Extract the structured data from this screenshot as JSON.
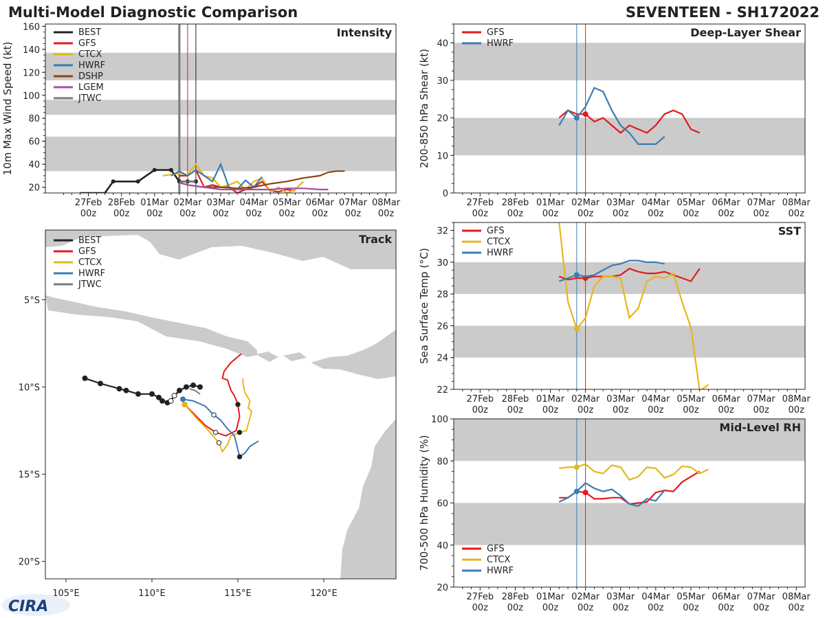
{
  "header": {
    "title_left": "Multi-Model Diagnostic Comparison",
    "title_right": "SEVENTEEN - SH172022"
  },
  "logo": {
    "text": "CIRA"
  },
  "colors": {
    "BEST": "#222222",
    "GFS": "#e31a1c",
    "CTCX": "#e6b619",
    "HWRF": "#3a7cb2",
    "DSHP": "#8b4513",
    "LGEM": "#a64ca6",
    "JTWC": "#7a7a7a",
    "band": "#cbcbcb"
  },
  "time_axis": {
    "labels": [
      "27Feb",
      "28Feb",
      "01Mar",
      "02Mar",
      "03Mar",
      "04Mar",
      "05Mar",
      "06Mar",
      "07Mar",
      "08Mar"
    ],
    "sublabel": "00z",
    "vline_blue": 2.75,
    "vline_red": 3.0,
    "vline_black": 3.25
  },
  "chart_data": [
    {
      "id": "intensity",
      "type": "line",
      "title": "Intensity",
      "ylabel": "10m Max Wind Speed (kt)",
      "xlim": [
        -1.3,
        9.3
      ],
      "ylim": [
        15,
        162
      ],
      "yticks": [
        20,
        40,
        60,
        80,
        100,
        120,
        140,
        160
      ],
      "bands": [
        [
          34,
          64
        ],
        [
          83,
          96
        ],
        [
          113,
          137
        ]
      ],
      "vlines": [
        {
          "x": 2.75,
          "color": "#7a7a7a",
          "width": 3
        },
        {
          "x": 3.0,
          "color": "#e31a1c",
          "width": 1
        },
        {
          "x": 3.25,
          "color": "#222222",
          "width": 1
        }
      ],
      "legend": [
        "BEST",
        "GFS",
        "CTCX",
        "HWRF",
        "DSHP",
        "LGEM",
        "JTWC"
      ],
      "series": [
        {
          "name": "BEST",
          "x": [
            -0.25,
            0.5,
            0.75,
            1.5,
            2.0,
            2.5,
            2.75,
            3.0,
            3.25
          ],
          "y": [
            15,
            15,
            25,
            25,
            35,
            35,
            25,
            25,
            25
          ],
          "markers": true
        },
        {
          "name": "GFS",
          "x": [
            2.75,
            3.0,
            3.25,
            3.5,
            3.75,
            4.0,
            4.25,
            4.5,
            4.75,
            5.0,
            5.25,
            5.5,
            5.75,
            6.0,
            6.25
          ],
          "y": [
            30,
            30,
            35,
            20,
            22,
            20,
            20,
            15,
            18,
            20,
            25,
            17,
            16,
            18,
            17
          ]
        },
        {
          "name": "CTCX",
          "x": [
            2.25,
            2.5,
            2.75,
            3.0,
            3.25,
            3.5,
            3.75,
            4.0,
            4.25,
            4.5,
            4.75,
            5.0,
            5.25,
            5.5,
            5.75,
            6.0,
            6.25,
            6.5
          ],
          "y": [
            30,
            31,
            32,
            31,
            40,
            30,
            28,
            20,
            22,
            25,
            18,
            25,
            28,
            16,
            20,
            15,
            18,
            25
          ]
        },
        {
          "name": "HWRF",
          "x": [
            2.5,
            2.75,
            3.0,
            3.25,
            3.5,
            3.75,
            4.0,
            4.25,
            4.5,
            4.75,
            5.0,
            5.25
          ],
          "y": [
            30,
            34,
            30,
            35,
            30,
            25,
            40,
            20,
            18,
            26,
            20,
            29
          ]
        },
        {
          "name": "DSHP",
          "x": [
            2.75,
            3.0,
            3.5,
            4.0,
            4.5,
            5.0,
            5.5,
            6.0,
            6.5,
            7.0,
            7.25,
            7.5,
            7.75
          ],
          "y": [
            24,
            22,
            20,
            20,
            19,
            20,
            23,
            25,
            28,
            30,
            33,
            34,
            34
          ]
        },
        {
          "name": "LGEM",
          "x": [
            2.75,
            3.0,
            3.5,
            4.0,
            4.5,
            5.0,
            5.5,
            6.0,
            6.5,
            7.0,
            7.25
          ],
          "y": [
            24,
            22,
            20,
            18,
            18,
            18,
            18,
            19,
            19,
            18,
            18
          ]
        },
        {
          "name": "JTWC",
          "x": [
            2.75,
            3.0,
            3.25
          ],
          "y": [
            25,
            25,
            25
          ]
        }
      ]
    },
    {
      "id": "shear",
      "type": "line",
      "title": "Deep-Layer Shear",
      "ylabel": "200-850 hPa Shear (kt)",
      "xlim": [
        -0.75,
        9.25
      ],
      "ylim": [
        0,
        45
      ],
      "yticks": [
        0,
        10,
        20,
        30,
        40
      ],
      "bands": [
        [
          10,
          20
        ],
        [
          30,
          40
        ]
      ],
      "vlines": [
        {
          "x": 2.75,
          "color": "#3a7cb2",
          "width": 1
        },
        {
          "x": 3.0,
          "color": "#e31a1c",
          "width": 1
        }
      ],
      "legend": [
        "GFS",
        "HWRF"
      ],
      "series": [
        {
          "name": "GFS",
          "x": [
            2.25,
            2.5,
            2.75,
            3.0,
            3.25,
            3.5,
            3.75,
            4.0,
            4.25,
            4.5,
            4.75,
            5.0,
            5.25,
            5.5,
            5.75,
            6.0,
            6.25
          ],
          "y": [
            20,
            22,
            21,
            21,
            19,
            20,
            18,
            16,
            18,
            17,
            16,
            18,
            21,
            22,
            21,
            17,
            16
          ],
          "dot": [
            3.0,
            21
          ]
        },
        {
          "name": "HWRF",
          "x": [
            2.25,
            2.5,
            2.75,
            3.0,
            3.25,
            3.5,
            3.75,
            4.0,
            4.25,
            4.5,
            4.75,
            5.0,
            5.25
          ],
          "y": [
            18,
            22,
            20,
            23,
            28,
            27,
            22,
            18,
            16,
            13,
            13,
            13,
            15
          ],
          "dot": [
            2.75,
            20
          ]
        }
      ]
    },
    {
      "id": "sst",
      "type": "line",
      "title": "SST",
      "ylabel": "Sea Surface Temp (°C)",
      "xlim": [
        -0.75,
        9.25
      ],
      "ylim": [
        22,
        32.5
      ],
      "yticks": [
        22,
        24,
        26,
        28,
        30,
        32
      ],
      "bands": [
        [
          24,
          26
        ],
        [
          28,
          30
        ]
      ],
      "vlines": [
        {
          "x": 2.75,
          "color": "#3a7cb2",
          "width": 1
        },
        {
          "x": 3.0,
          "color": "#e31a1c",
          "width": 1
        }
      ],
      "legend": [
        "GFS",
        "CTCX",
        "HWRF"
      ],
      "series": [
        {
          "name": "GFS",
          "x": [
            2.25,
            2.5,
            2.75,
            3.0,
            3.25,
            3.5,
            3.75,
            4.0,
            4.25,
            4.5,
            4.75,
            5.0,
            5.25,
            5.5,
            5.75,
            6.0,
            6.25
          ],
          "y": [
            29.1,
            28.9,
            29.0,
            29.0,
            29.1,
            29.1,
            29.1,
            29.2,
            29.6,
            29.4,
            29.3,
            29.3,
            29.4,
            29.2,
            29.0,
            28.8,
            29.6
          ],
          "dot": [
            3.0,
            29.0
          ]
        },
        {
          "name": "CTCX",
          "x": [
            2.25,
            2.5,
            2.75,
            3.0,
            3.25,
            3.5,
            3.75,
            4.0,
            4.25,
            4.5,
            4.75,
            5.0,
            5.25,
            5.5,
            5.75,
            6.0,
            6.25,
            6.5
          ],
          "y": [
            32.5,
            27.5,
            25.8,
            26.5,
            28.5,
            29.1,
            29.1,
            29.0,
            26.5,
            27.1,
            28.8,
            29.1,
            29.0,
            29.3,
            27.5,
            25.9,
            21.9,
            22.3
          ],
          "dot": [
            2.75,
            25.8
          ]
        },
        {
          "name": "HWRF",
          "x": [
            2.25,
            2.5,
            2.75,
            3.0,
            3.25,
            3.5,
            3.75,
            4.0,
            4.25,
            4.5,
            4.75,
            5.0,
            5.25
          ],
          "y": [
            28.8,
            29.0,
            29.2,
            29.1,
            29.2,
            29.5,
            29.8,
            29.9,
            30.1,
            30.1,
            30.0,
            30.0,
            29.9
          ],
          "dot": [
            2.75,
            29.2
          ]
        }
      ]
    },
    {
      "id": "rh",
      "type": "line",
      "title": "Mid-Level RH",
      "ylabel": "700-500 hPa Humidity (%)",
      "xlim": [
        -0.75,
        9.25
      ],
      "ylim": [
        20,
        100
      ],
      "yticks": [
        20,
        40,
        60,
        80,
        100
      ],
      "bands": [
        [
          40,
          60
        ],
        [
          80,
          100
        ]
      ],
      "vlines": [
        {
          "x": 2.75,
          "color": "#3a7cb2",
          "width": 1
        },
        {
          "x": 3.0,
          "color": "#e31a1c",
          "width": 1
        }
      ],
      "legend": [
        "GFS",
        "CTCX",
        "HWRF"
      ],
      "series": [
        {
          "name": "GFS",
          "x": [
            2.25,
            2.5,
            2.75,
            3.0,
            3.25,
            3.5,
            3.75,
            4.0,
            4.25,
            4.5,
            4.75,
            5.0,
            5.25,
            5.5,
            5.75,
            6.0,
            6.25
          ],
          "y": [
            62.5,
            62.5,
            65.5,
            65,
            62,
            62,
            62.5,
            62.5,
            59.5,
            60,
            60.5,
            65,
            66,
            65.5,
            70,
            72.5,
            75
          ],
          "dot": [
            3.0,
            65
          ]
        },
        {
          "name": "CTCX",
          "x": [
            2.25,
            2.5,
            2.75,
            3.0,
            3.25,
            3.5,
            3.75,
            4.0,
            4.25,
            4.5,
            4.75,
            5.0,
            5.25,
            5.5,
            5.75,
            6.0,
            6.25,
            6.5
          ],
          "y": [
            76.5,
            77,
            77,
            78.5,
            75,
            74,
            78,
            77,
            71,
            72.5,
            77,
            76.5,
            72,
            73.5,
            77.5,
            77,
            74,
            76
          ],
          "dot": [
            2.75,
            77
          ]
        },
        {
          "name": "HWRF",
          "x": [
            2.25,
            2.5,
            2.75,
            3.0,
            3.25,
            3.5,
            3.75,
            4.0,
            4.25,
            4.5,
            4.75,
            5.0,
            5.25
          ],
          "y": [
            60.5,
            62.5,
            65.5,
            69.5,
            67,
            65.5,
            66.5,
            63.5,
            59.5,
            58.5,
            62,
            61,
            66
          ],
          "dot": [
            2.75,
            65.5
          ]
        }
      ]
    },
    {
      "id": "track",
      "type": "scatter",
      "title": "Track",
      "xlim": [
        103.8,
        124.2
      ],
      "ylim": [
        -21.0,
        -1.0
      ],
      "xticks": [
        105,
        110,
        115,
        120
      ],
      "xtick_labels": [
        "105°E",
        "110°E",
        "115°E",
        "120°E"
      ],
      "yticks": [
        -5,
        -10,
        -15,
        -20
      ],
      "ytick_labels": [
        "5°S",
        "10°S",
        "15°S",
        "20°S"
      ],
      "legend": [
        "BEST",
        "GFS",
        "CTCX",
        "HWRF",
        "JTWC"
      ],
      "series": [
        {
          "name": "BEST",
          "lon": [
            106.1,
            107.0,
            108.1,
            108.5,
            109.2,
            110.0,
            110.4,
            110.6,
            110.9,
            111.1,
            111.3,
            111.6,
            112.0,
            112.4,
            112.8
          ],
          "lat": [
            -9.5,
            -9.8,
            -10.1,
            -10.2,
            -10.4,
            -10.4,
            -10.6,
            -10.8,
            -10.9,
            -10.8,
            -10.5,
            -10.2,
            -10.0,
            -9.9,
            -10.0
          ],
          "markers": true
        },
        {
          "name": "GFS",
          "lon": [
            111.9,
            112.5,
            113.1,
            113.7,
            114.3,
            114.9,
            115.1,
            115.0,
            114.8,
            114.6,
            114.5,
            114.4,
            114.1,
            114.2,
            114.6,
            115.2
          ],
          "lat": [
            -11.0,
            -11.6,
            -12.2,
            -12.6,
            -12.8,
            -12.5,
            -11.7,
            -11.0,
            -10.5,
            -10.2,
            -9.9,
            -9.6,
            -9.5,
            -9.1,
            -8.6,
            -8.1
          ]
        },
        {
          "name": "CTCX",
          "lon": [
            111.9,
            112.6,
            113.2,
            113.9,
            114.1,
            114.4,
            114.6,
            115.1,
            115.5,
            115.8,
            115.6,
            115.7,
            115.4,
            115.3,
            115.3
          ],
          "lat": [
            -11.0,
            -11.8,
            -12.4,
            -13.2,
            -13.7,
            -13.3,
            -12.8,
            -12.6,
            -12.5,
            -11.4,
            -11.2,
            -10.8,
            -10.3,
            -9.8,
            -9.5
          ]
        },
        {
          "name": "HWRF",
          "lon": [
            111.8,
            112.4,
            113.1,
            113.6,
            114.0,
            114.4,
            114.8,
            115.1,
            115.4,
            115.7,
            116.2
          ],
          "lat": [
            -10.7,
            -10.8,
            -11.1,
            -11.6,
            -11.9,
            -12.4,
            -12.8,
            -14.0,
            -13.8,
            -13.4,
            -13.1
          ]
        },
        {
          "name": "JTWC",
          "lon": [
            112.2,
            112.5,
            112.8
          ],
          "lat": [
            -10.1,
            -10.2,
            -10.4
          ]
        }
      ]
    }
  ]
}
